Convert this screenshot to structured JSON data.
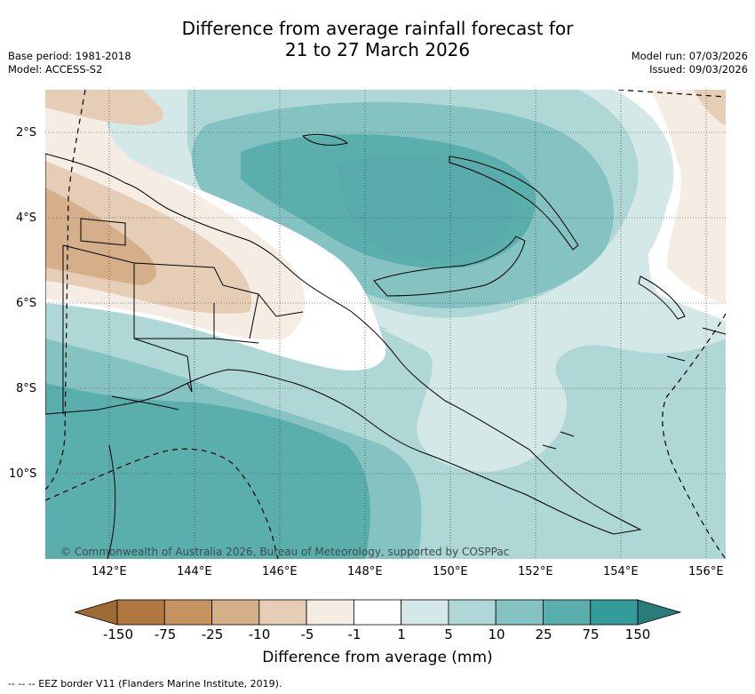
{
  "header": {
    "title_line1": "Difference from average rainfall forecast for",
    "title_line2": "21 to 27 March 2026",
    "base_period": "Base period: 1981-2018",
    "model": "Model: ACCESS-S2",
    "model_run": "Model run: 07/03/2026",
    "issued": "Issued: 09/03/2026"
  },
  "map": {
    "lat_ticks": [
      "2°S",
      "4°S",
      "6°S",
      "8°S",
      "10°S"
    ],
    "lon_ticks": [
      "142°E",
      "144°E",
      "146°E",
      "148°E",
      "150°E",
      "152°E",
      "154°E",
      "156°E"
    ],
    "copyright": "© Commonwealth of Australia 2026, Bureau of Meteorology, supported by COSPPac",
    "eez_note": "-- -- -- EEZ border V11 (Flanders Marine Institute, 2019)."
  },
  "colorbar": {
    "title": "Difference from average (mm)",
    "labels": [
      "-150",
      "-75",
      "-25",
      "-10",
      "-5",
      "-1",
      "1",
      "5",
      "10",
      "25",
      "75",
      "150"
    ],
    "colors": [
      "#a06a34",
      "#b17740",
      "#c4935f",
      "#d5ae8a",
      "#e6cdb6",
      "#f5ece4",
      "#ffffff",
      "#d4e8e7",
      "#aed7d6",
      "#85c3c2",
      "#5aaeac",
      "#339b99",
      "#2a7c7b"
    ]
  }
}
